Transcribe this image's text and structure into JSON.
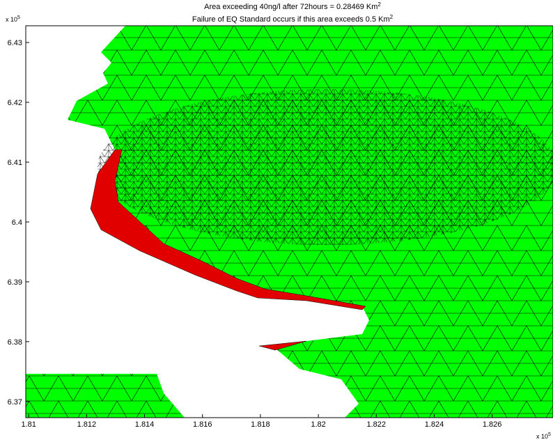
{
  "chart_data": {
    "type": "patch",
    "title": [
      "Area exceeding 40ng/l after 72hours = 0.28469 Km",
      "Failure of EQ Standard occurs if this area exceeds 0.5 Km"
    ],
    "title_superscripts": [
      "2",
      "2"
    ],
    "xlim": [
      1.8099,
      1.8281
    ],
    "ylim": [
      6.3673,
      6.4328
    ],
    "xticks": [
      1.81,
      1.812,
      1.814,
      1.816,
      1.818,
      1.82,
      1.822,
      1.824,
      1.826
    ],
    "yticks": [
      6.37,
      6.38,
      6.39,
      6.4,
      6.41,
      6.42,
      6.43
    ],
    "x_multiplier": {
      "base": "x 10",
      "exponent": "5"
    },
    "y_multiplier": {
      "base": "x 10",
      "exponent": "5"
    }
  }
}
